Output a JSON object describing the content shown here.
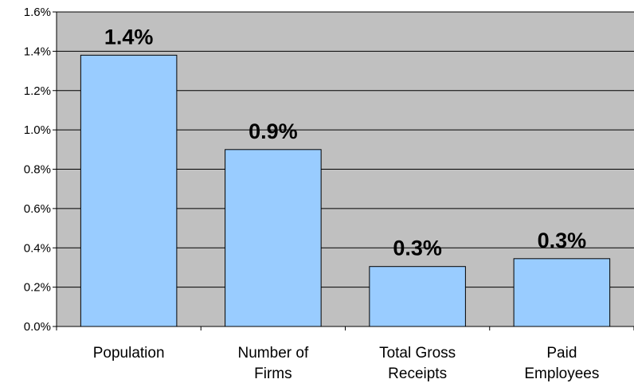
{
  "chart_data": {
    "type": "bar",
    "categories": [
      [
        "Population"
      ],
      [
        "Number of",
        "Firms"
      ],
      [
        "Total Gross",
        "Receipts"
      ],
      [
        "Paid",
        "Employees"
      ]
    ],
    "values": [
      1.38,
      0.9,
      0.305,
      0.345
    ],
    "data_labels": [
      "1.4%",
      "0.9%",
      "0.3%",
      "0.3%"
    ],
    "y_ticks": [
      {
        "value": 0.0,
        "label": "0.0%"
      },
      {
        "value": 0.2,
        "label": "0.2%"
      },
      {
        "value": 0.4,
        "label": "0.4%"
      },
      {
        "value": 0.6,
        "label": "0.6%"
      },
      {
        "value": 0.8,
        "label": "0.8%"
      },
      {
        "value": 1.0,
        "label": "1.0%"
      },
      {
        "value": 1.2,
        "label": "1.2%"
      },
      {
        "value": 1.4,
        "label": "1.4%"
      },
      {
        "value": 1.6,
        "label": "1.6%"
      }
    ],
    "ylim": [
      0,
      1.6
    ],
    "unit": "%",
    "grid": true,
    "legend": false,
    "title": "",
    "xlabel": "",
    "ylabel": "",
    "colors": {
      "plot_background": "#c0c0c0",
      "bar_fill": "#99ccff",
      "bar_stroke": "#000000",
      "gridline": "#000000"
    }
  }
}
